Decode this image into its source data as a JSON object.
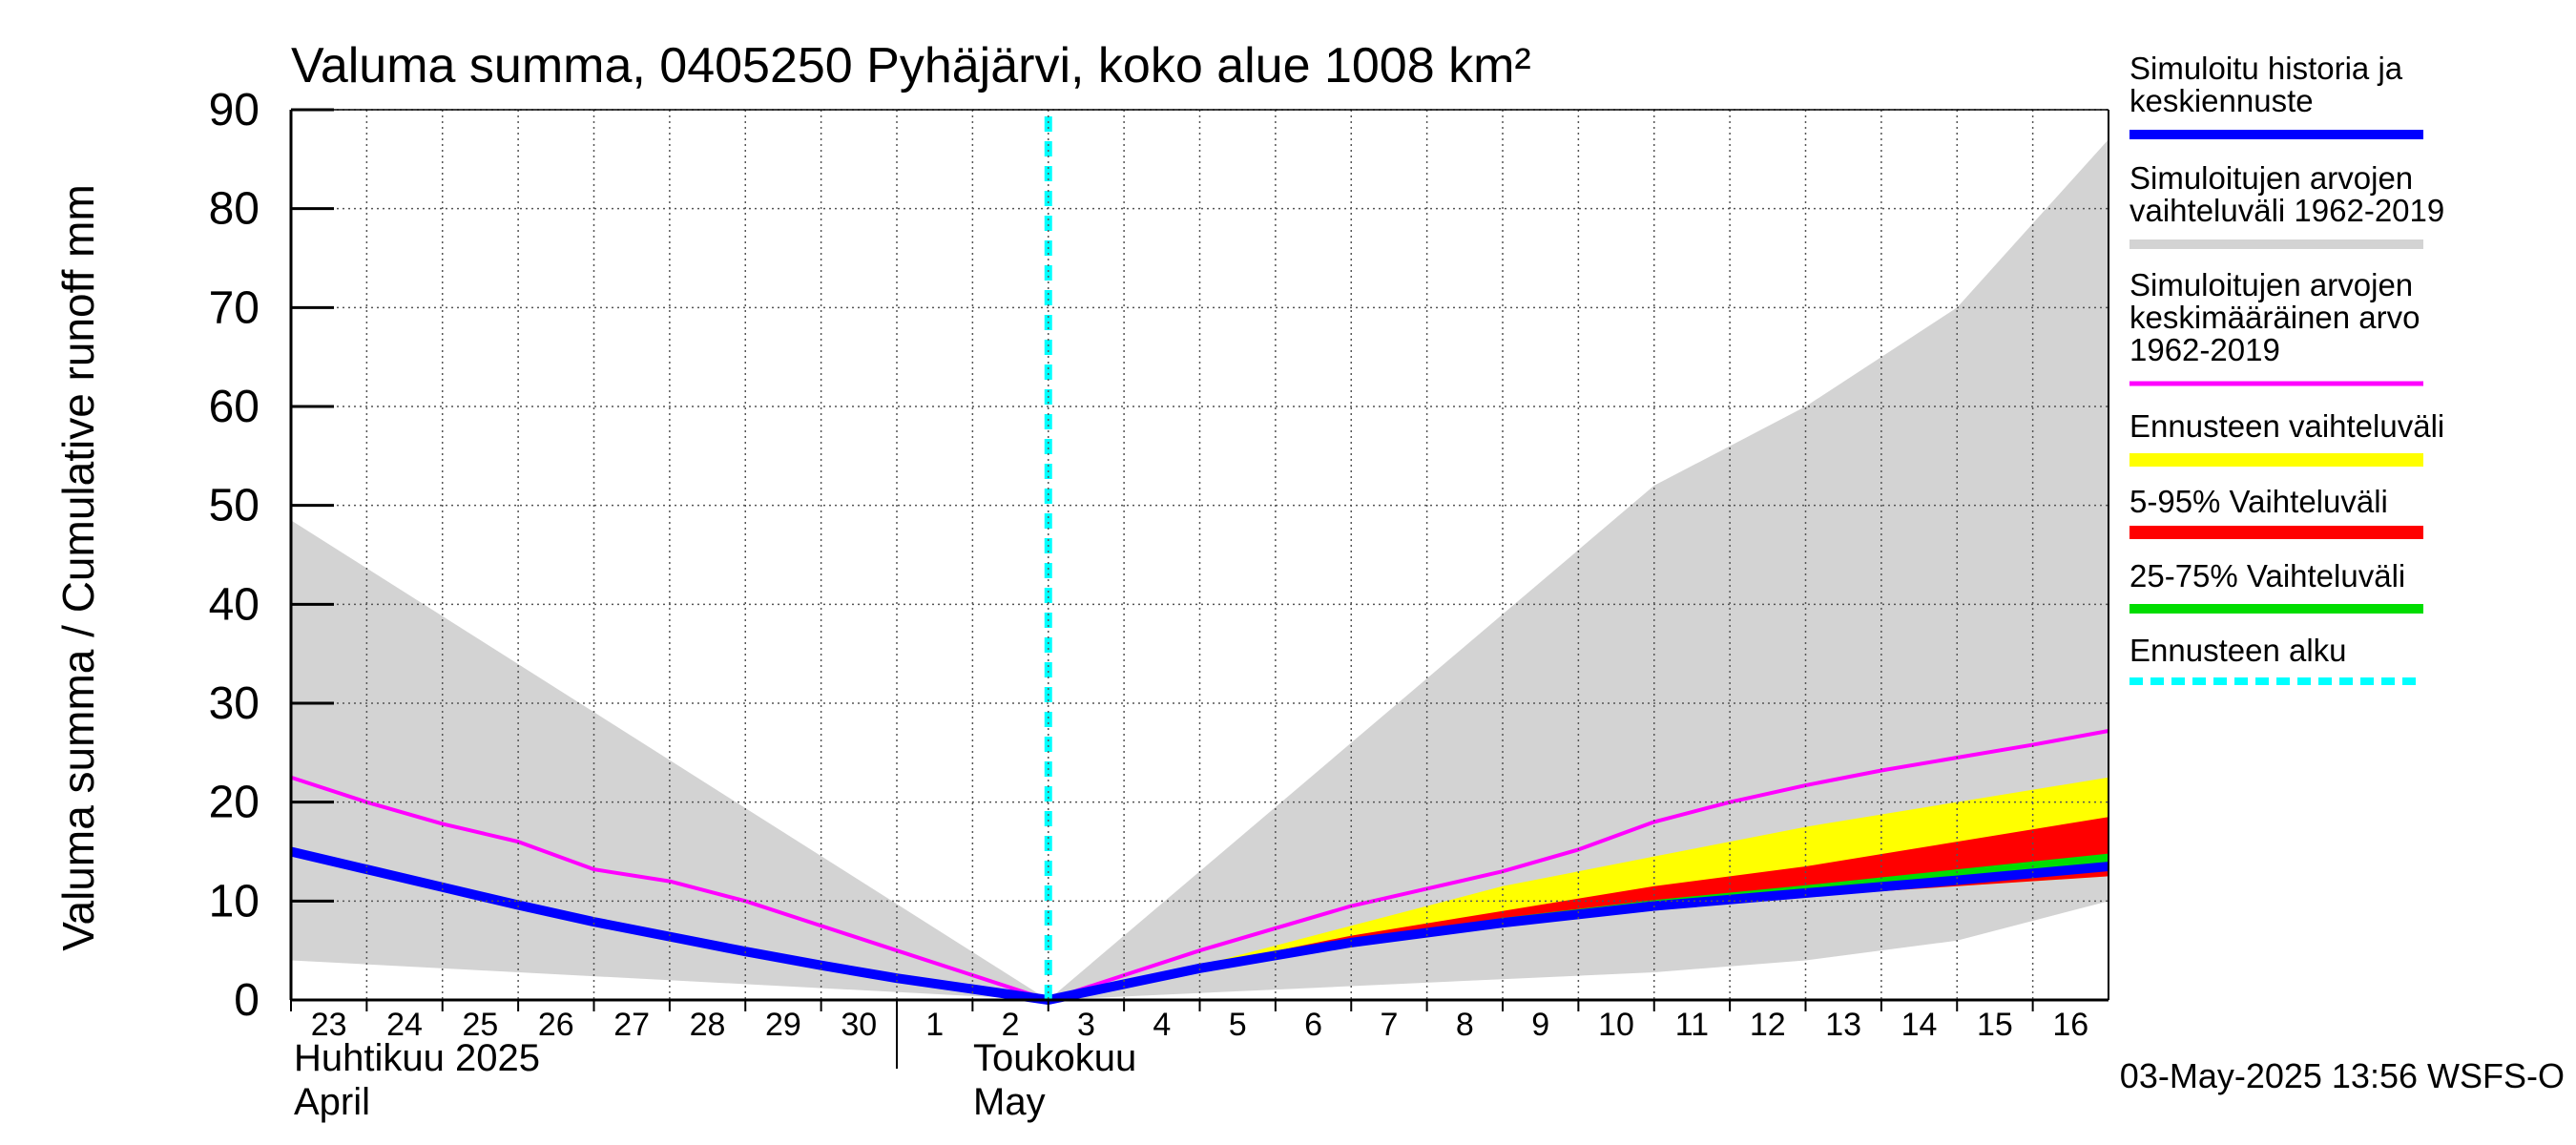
{
  "chart_data": {
    "type": "area",
    "title": "Valuma summa, 0405250 Pyhäjärvi, koko alue 1008 km²",
    "ylabel": "Valuma summa / Cumulative runoff    mm",
    "ylim": [
      0,
      90
    ],
    "yticks": [
      0,
      10,
      20,
      30,
      40,
      50,
      60,
      70,
      80,
      90
    ],
    "x_day_range": [
      0,
      24
    ],
    "x_days": [
      {
        "label": "23",
        "x": 0
      },
      {
        "label": "24",
        "x": 1
      },
      {
        "label": "25",
        "x": 2
      },
      {
        "label": "26",
        "x": 3
      },
      {
        "label": "27",
        "x": 4
      },
      {
        "label": "28",
        "x": 5
      },
      {
        "label": "29",
        "x": 6
      },
      {
        "label": "30",
        "x": 7
      },
      {
        "label": "1",
        "x": 8
      },
      {
        "label": "2",
        "x": 9
      },
      {
        "label": "3",
        "x": 10
      },
      {
        "label": "4",
        "x": 11
      },
      {
        "label": "5",
        "x": 12
      },
      {
        "label": "6",
        "x": 13
      },
      {
        "label": "7",
        "x": 14
      },
      {
        "label": "8",
        "x": 15
      },
      {
        "label": "9",
        "x": 16
      },
      {
        "label": "10",
        "x": 17
      },
      {
        "label": "11",
        "x": 18
      },
      {
        "label": "12",
        "x": 19
      },
      {
        "label": "13",
        "x": 20
      },
      {
        "label": "14",
        "x": 21
      },
      {
        "label": "15",
        "x": 22
      },
      {
        "label": "16",
        "x": 23
      }
    ],
    "month_labels": {
      "april_fi": "Huhtikuu  2025",
      "april_en": "April",
      "may_fi": "Toukokuu",
      "may_en": "May"
    },
    "month_boundary_x": 8,
    "forecast_start_x": 10,
    "series": [
      {
        "name": "Simuloitujen arvojen vaihteluväli 1962-2019",
        "kind": "band",
        "color": "#d3d3d3",
        "x": [
          0,
          10,
          18,
          20,
          22,
          24
        ],
        "upper": [
          48.5,
          0,
          52,
          60,
          70,
          87
        ],
        "lower": [
          4,
          0,
          2.8,
          4,
          6,
          10
        ]
      },
      {
        "name": "Ennusteen vaihteluväli",
        "kind": "band",
        "color": "#ffff00",
        "x": [
          10,
          12,
          14,
          16,
          18,
          20,
          22,
          24
        ],
        "upper": [
          0,
          3.5,
          7.5,
          11.5,
          14.5,
          17.5,
          20,
          22.5
        ],
        "lower": [
          0,
          3.2,
          6,
          8,
          9.5,
          10.5,
          11.5,
          12.5
        ]
      },
      {
        "name": "5-95% Vaihteluväli",
        "kind": "band",
        "color": "#ff0000",
        "x": [
          10,
          12,
          14,
          16,
          18,
          20,
          22,
          24
        ],
        "upper": [
          0,
          3.4,
          6.5,
          9,
          11.5,
          13.5,
          16,
          18.5
        ],
        "lower": [
          0,
          3.2,
          6,
          8,
          9.5,
          10.5,
          11.5,
          12.5
        ]
      },
      {
        "name": "25-75% Vaihteluväli",
        "kind": "band",
        "color": "#00dd00",
        "x": [
          10,
          12,
          14,
          16,
          18,
          20,
          22,
          24
        ],
        "upper": [
          0,
          3.3,
          6.1,
          8.3,
          10.1,
          11.6,
          13.2,
          14.8
        ],
        "lower": [
          0,
          3.2,
          6,
          8,
          9.6,
          10.9,
          12.2,
          13.5
        ]
      },
      {
        "name": "Simuloitujen arvojen keskimääräinen arvo 1962-2019",
        "kind": "line",
        "color": "#ff00ff",
        "x": [
          0,
          1,
          2,
          3,
          4,
          5,
          6,
          7,
          8,
          9,
          10,
          12,
          14,
          16,
          17,
          18,
          19,
          20,
          21,
          22,
          23,
          24
        ],
        "values": [
          22.5,
          20,
          17.8,
          16,
          13.2,
          12,
          10,
          7.5,
          5,
          2.5,
          0,
          5,
          9.5,
          13,
          15.2,
          18,
          20,
          21.7,
          23.2,
          24.5,
          25.8,
          27.2
        ]
      },
      {
        "name": "Simuloitu historia ja keskiennuste",
        "kind": "line",
        "color": "#0000ff",
        "x": [
          0,
          1,
          2,
          3,
          4,
          5,
          6,
          7,
          8,
          9,
          10,
          12,
          14,
          16,
          18,
          20,
          22,
          24
        ],
        "values": [
          15,
          13.2,
          11.4,
          9.6,
          7.9,
          6.4,
          4.9,
          3.5,
          2.2,
          1.1,
          0,
          3.2,
          5.8,
          7.8,
          9.5,
          10.8,
          12.1,
          13.5
        ]
      }
    ],
    "legend": [
      {
        "label": "Simuloitu historia ja keskiennuste",
        "color": "#0000ff",
        "style": "solid"
      },
      {
        "label": "Simuloitujen arvojen vaihteluväli 1962-2019",
        "color": "#d3d3d3",
        "style": "solid"
      },
      {
        "label": "Simuloitujen arvojen keskimääräinen arvo\n   1962-2019",
        "color": "#ff00ff",
        "style": "solid"
      },
      {
        "label": "Ennusteen vaihteluväli",
        "color": "#ffff00",
        "style": "solid"
      },
      {
        "label": "5-95% Vaihteluväli",
        "color": "#ff0000",
        "style": "solid"
      },
      {
        "label": "25-75% Vaihteluväli",
        "color": "#00dd00",
        "style": "solid"
      },
      {
        "label": "Ennusteen alku",
        "color": "#00ffff",
        "style": "dashed"
      }
    ],
    "footer": "03-May-2025 13:56 WSFS-O"
  }
}
